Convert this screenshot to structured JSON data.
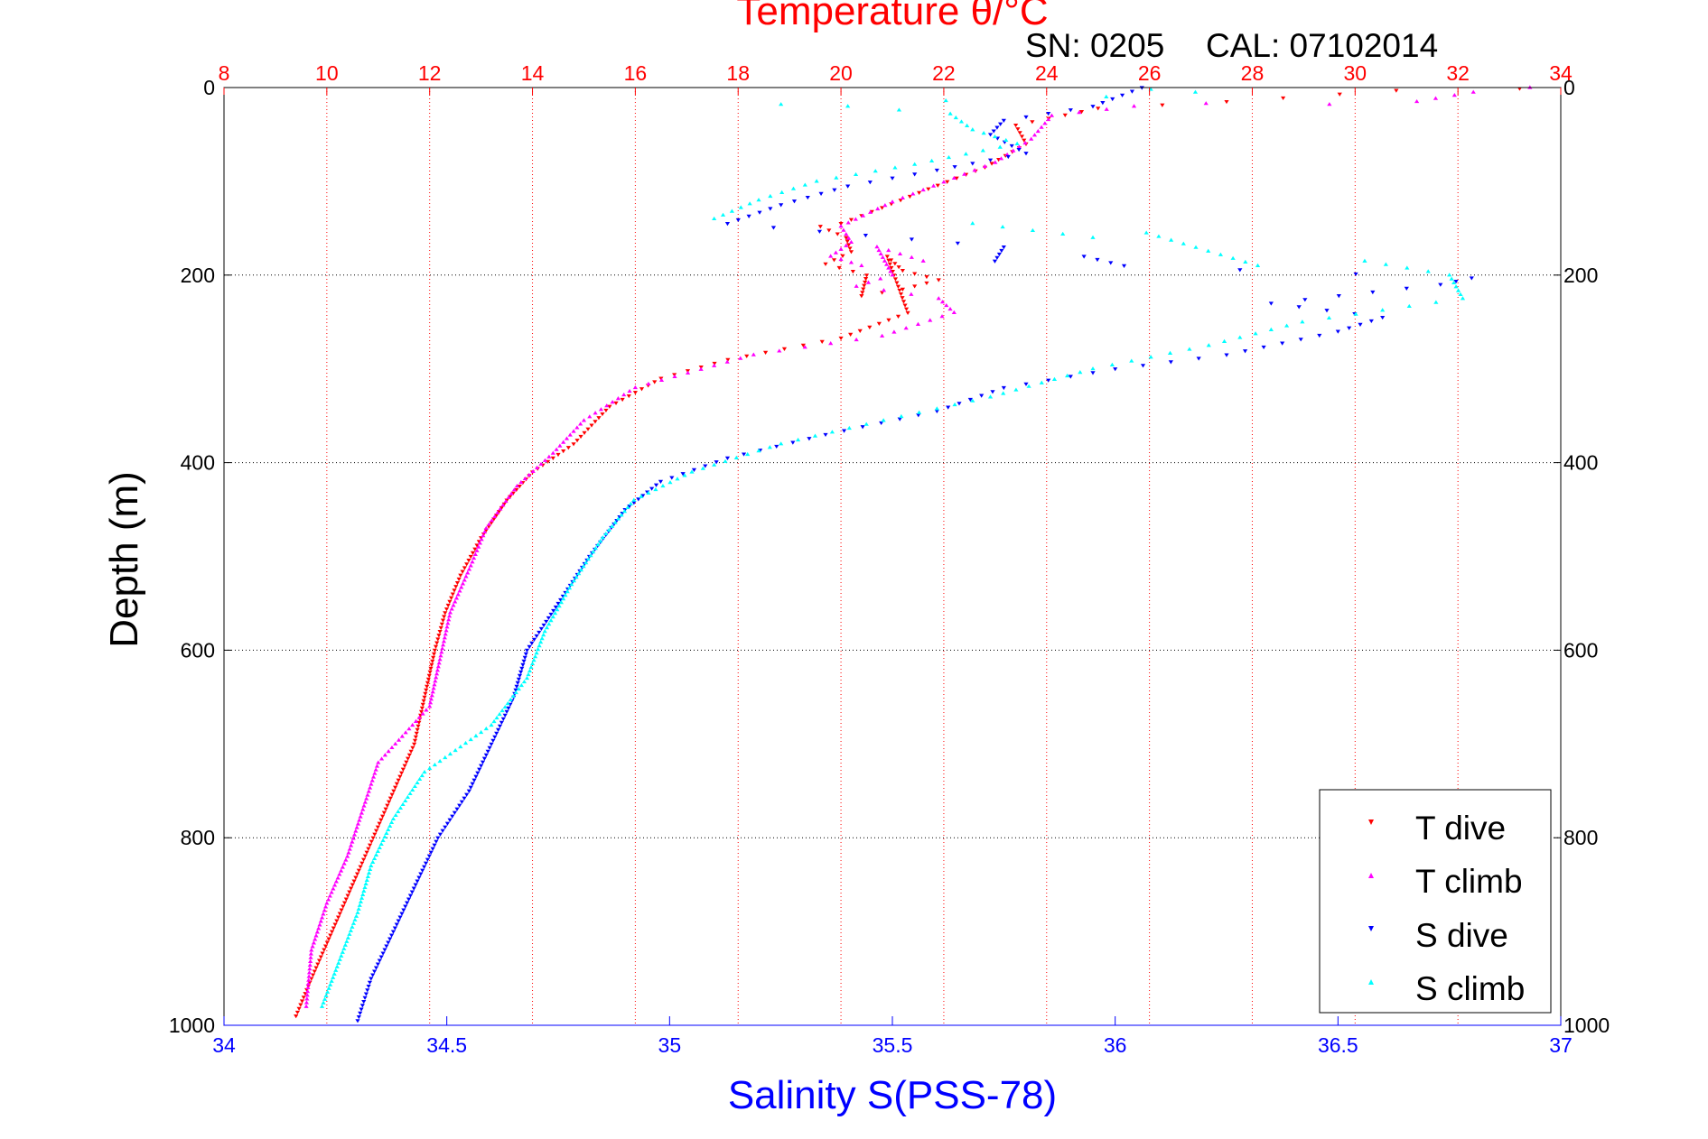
{
  "header": {
    "title": "Temperature θ/°C",
    "sn_label": "SN: 0205",
    "cal_label": "CAL: 07102014"
  },
  "colors": {
    "temperature_axis": "#ff0000",
    "salinity_axis": "#0000ff",
    "grid_temperature": "#ff0000",
    "grid_depth": "#000000",
    "t_dive": "#ff0000",
    "t_climb": "#ff00ff",
    "s_dive": "#0000ff",
    "s_climb": "#00ffff"
  },
  "chart_data": {
    "type": "scatter",
    "title": "Temperature θ/°C",
    "xlabel": "Salinity S(PSS-78)",
    "ylabel": "Depth (m)",
    "y_axis": {
      "label": "Depth (m)",
      "range": [
        0,
        1000
      ],
      "reversed": true,
      "ticks": [
        0,
        200,
        400,
        600,
        800,
        1000
      ],
      "grid": true
    },
    "x_top": {
      "label": "Temperature θ/°C",
      "range": [
        8,
        34
      ],
      "ticks": [
        8,
        10,
        12,
        14,
        16,
        18,
        20,
        22,
        24,
        26,
        28,
        30,
        32,
        34
      ],
      "grid": true
    },
    "x_bottom": {
      "label": "Salinity S(PSS-78)",
      "range": [
        34,
        37
      ],
      "ticks": [
        "34",
        "34.5",
        "35",
        "35.5",
        "36",
        "36.5",
        "37"
      ]
    },
    "legend_placement": "bottom-right",
    "series": [
      {
        "name": "T dive",
        "axis": "temperature",
        "marker": "triangle-down",
        "points": [
          [
            33.2,
            1
          ],
          [
            30.8,
            3
          ],
          [
            27.5,
            15
          ],
          [
            25,
            22
          ],
          [
            23.4,
            40
          ],
          [
            23.6,
            60
          ],
          [
            22.8,
            85
          ],
          [
            21.7,
            108
          ],
          [
            20.8,
            128
          ],
          [
            20.0,
            145
          ],
          [
            19.6,
            148
          ],
          [
            20.1,
            160
          ],
          [
            20.2,
            175
          ],
          [
            19.7,
            188
          ],
          [
            20.5,
            200
          ],
          [
            20.4,
            222
          ],
          [
            21.2,
            215
          ],
          [
            21.9,
            205
          ],
          [
            21.2,
            195
          ],
          [
            20.9,
            180
          ],
          [
            21.3,
            240
          ],
          [
            20.0,
            267
          ],
          [
            17.8,
            290
          ],
          [
            16.5,
            310
          ],
          [
            15.5,
            340
          ],
          [
            14.8,
            380
          ],
          [
            14.0,
            410
          ],
          [
            13.5,
            440
          ],
          [
            13.0,
            480
          ],
          [
            12.6,
            520
          ],
          [
            12.3,
            560
          ],
          [
            12.1,
            600
          ],
          [
            11.9,
            650
          ],
          [
            11.7,
            700
          ],
          [
            11.3,
            750
          ],
          [
            10.9,
            800
          ],
          [
            10.5,
            850
          ],
          [
            10.1,
            900
          ],
          [
            9.7,
            950
          ],
          [
            9.4,
            990
          ]
        ]
      },
      {
        "name": "T climb",
        "axis": "temperature",
        "marker": "triangle-up",
        "points": [
          [
            33.4,
            0
          ],
          [
            32.3,
            5
          ],
          [
            31.2,
            15
          ],
          [
            29.5,
            18
          ],
          [
            27.1,
            17
          ],
          [
            25.7,
            20
          ],
          [
            24.1,
            30
          ],
          [
            23.7,
            55
          ],
          [
            23.0,
            80
          ],
          [
            21.8,
            105
          ],
          [
            21.0,
            122
          ],
          [
            20.0,
            148
          ],
          [
            20.2,
            165
          ],
          [
            19.8,
            180
          ],
          [
            20.4,
            190
          ],
          [
            21.6,
            185
          ],
          [
            20.7,
            170
          ],
          [
            21.0,
            200
          ],
          [
            20.3,
            212
          ],
          [
            21.9,
            225
          ],
          [
            22.2,
            240
          ],
          [
            20.8,
            265
          ],
          [
            18.3,
            285
          ],
          [
            16.0,
            320
          ],
          [
            15.0,
            355
          ],
          [
            14.4,
            390
          ],
          [
            13.7,
            425
          ],
          [
            13.1,
            470
          ],
          [
            12.8,
            510
          ],
          [
            12.4,
            560
          ],
          [
            12.2,
            610
          ],
          [
            12.0,
            660
          ],
          [
            11.0,
            720
          ],
          [
            10.7,
            770
          ],
          [
            10.4,
            820
          ],
          [
            10.0,
            870
          ],
          [
            9.7,
            920
          ],
          [
            9.6,
            980
          ]
        ]
      },
      {
        "name": "S dive",
        "axis": "salinity",
        "marker": "triangle-down",
        "points": [
          [
            36.06,
            0
          ],
          [
            35.95,
            20
          ],
          [
            35.75,
            35
          ],
          [
            35.72,
            50
          ],
          [
            35.8,
            70
          ],
          [
            35.6,
            88
          ],
          [
            35.4,
            105
          ],
          [
            35.25,
            125
          ],
          [
            35.13,
            145
          ],
          [
            35.75,
            170
          ],
          [
            35.73,
            185
          ],
          [
            35.93,
            180
          ],
          [
            36.02,
            190
          ],
          [
            36.8,
            203
          ],
          [
            36.73,
            210
          ],
          [
            36.35,
            230
          ],
          [
            36.6,
            245
          ],
          [
            36.5,
            260
          ],
          [
            36.25,
            285
          ],
          [
            36.0,
            300
          ],
          [
            35.75,
            320
          ],
          [
            35.6,
            345
          ],
          [
            35.35,
            370
          ],
          [
            35.13,
            395
          ],
          [
            34.98,
            420
          ],
          [
            34.9,
            450
          ],
          [
            34.82,
            500
          ],
          [
            34.75,
            550
          ],
          [
            34.68,
            600
          ],
          [
            34.65,
            650
          ],
          [
            34.6,
            700
          ],
          [
            34.55,
            750
          ],
          [
            34.48,
            800
          ],
          [
            34.43,
            850
          ],
          [
            34.38,
            900
          ],
          [
            34.33,
            950
          ],
          [
            34.3,
            995
          ]
        ]
      },
      {
        "name": "S climb",
        "axis": "salinity",
        "marker": "triangle-up",
        "points": [
          [
            36.08,
            2
          ],
          [
            36.18,
            5
          ],
          [
            35.98,
            10
          ],
          [
            35.62,
            14
          ],
          [
            35.25,
            18
          ],
          [
            35.4,
            20
          ],
          [
            35.63,
            28
          ],
          [
            35.68,
            45
          ],
          [
            35.78,
            60
          ],
          [
            35.55,
            82
          ],
          [
            35.33,
            100
          ],
          [
            35.2,
            120
          ],
          [
            35.1,
            140
          ],
          [
            35.68,
            145
          ],
          [
            35.95,
            160
          ],
          [
            36.07,
            155
          ],
          [
            36.32,
            190
          ],
          [
            36.56,
            185
          ],
          [
            36.75,
            200
          ],
          [
            36.78,
            225
          ],
          [
            36.42,
            250
          ],
          [
            36.21,
            275
          ],
          [
            35.95,
            300
          ],
          [
            35.72,
            330
          ],
          [
            35.48,
            355
          ],
          [
            35.25,
            380
          ],
          [
            35.05,
            410
          ],
          [
            34.92,
            440
          ],
          [
            34.85,
            480
          ],
          [
            34.78,
            530
          ],
          [
            34.72,
            580
          ],
          [
            34.68,
            630
          ],
          [
            34.6,
            680
          ],
          [
            34.45,
            730
          ],
          [
            34.38,
            780
          ],
          [
            34.33,
            830
          ],
          [
            34.3,
            880
          ],
          [
            34.26,
            930
          ],
          [
            34.22,
            980
          ]
        ]
      }
    ]
  }
}
